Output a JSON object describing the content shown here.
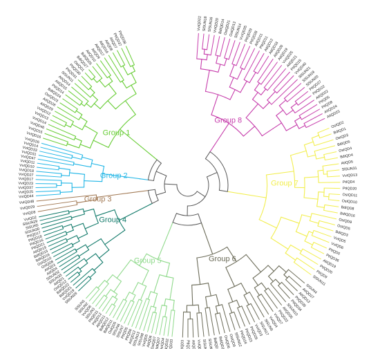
{
  "groups": [
    {
      "id": "g1",
      "label": "Group 1",
      "color": "#66cc33",
      "leaves": [
        "PtIQD38",
        "PtIQD37",
        "AtIQD7",
        "AtIQD8",
        "AtIQD16",
        "AtIQD17",
        "AtIQD9",
        "AtIQD10",
        "BdIQD26",
        "BdIQD27",
        "OsIQD1",
        "PtIQD30",
        "PtIQD31",
        "SlSUN11",
        "AtIQD14",
        "AtIQD15",
        "PtIQD14",
        "BdIQD24",
        "OsIQD23",
        "AtIQD28",
        "AtIQD29",
        "VvIQD12",
        "VvIQD13",
        "VvIQD14",
        "VvIQD46",
        "VvIQD15",
        "VvIQD16"
      ]
    },
    {
      "id": "g2",
      "label": "Group 2",
      "color": "#22b6e6",
      "leaves": [
        "VvIQD26",
        "VvIQD14",
        "VvIQD33",
        "VvIQD31",
        "VvIQD47",
        "VvIQD11",
        "VvIQD10",
        "VvIQD18",
        "VvIQD27",
        "VvIQD17",
        "VvIQD23",
        "VvIQD37",
        "VvIQD25",
        "VvIQD44"
      ]
    },
    {
      "id": "g3",
      "label": "Group 3",
      "color": "#a27a55",
      "leaves": [
        "VvIQD48",
        "VvIQD29",
        "VvIQD8"
      ]
    },
    {
      "id": "g4",
      "label": "Group 4",
      "color": "#117a6a",
      "leaves": [
        "VvIQD2",
        "SlSUN29",
        "SlSUN5",
        "SlSUN30",
        "PtIQD17",
        "PtIQD18",
        "PtIQD16",
        "PtIQD21",
        "AtIQD19",
        "BdIQD15",
        "BdIQD16",
        "OsIQD10",
        "OsIQD8",
        "AtIQD3",
        "AtIQD4",
        "SlSUN32",
        "SlSUN33",
        "AtIQD1",
        "OsIQD12",
        "BdIQD22",
        "BdIQD21",
        "VvIQD19",
        "SlSUN26"
      ]
    },
    {
      "id": "g5",
      "label": "Group 5",
      "color": "#8ed98a",
      "leaves": [
        "SlSUN1",
        "SlSUN2",
        "VvIQD6",
        "SlSUN3",
        "PtIQD11",
        "PtIQD12",
        "AtIQD11",
        "BdIQD12",
        "BdIQD11",
        "OsIQD5",
        "SlSUN6",
        "SlSUN7",
        "PtIQD5",
        "PtIQD6",
        "AtIQD12",
        "SlSUN13",
        "SlSUN8",
        "VvIQD5",
        "AtIQD6",
        "OsIQD7",
        "BdIQD7",
        "OsIQD4",
        "PtIQD32",
        "PtIQD33"
      ]
    },
    {
      "id": "g6",
      "label": "Group 6",
      "color": "#6b6b58",
      "leaves": [
        "PtIQD3",
        "PtIQD4",
        "AtIQD2",
        "VvIQD1",
        "SlSUN27",
        "SlSUN28",
        "BdIQD1",
        "BdIQD2",
        "OsIQD6",
        "OsIQD9",
        "SlSUN12",
        "PtIQD24",
        "PtIQD23",
        "PtIQD26",
        "VvIQD3",
        "SlSUN17",
        "SlSUN9",
        "VvIQD4",
        "VvIQD7",
        "PtIQD22",
        "AtIQD26",
        "SlSUN10",
        "PtIQD34",
        "PtIQD35",
        "AtIQD13",
        "AtIQD27",
        "SlSUN4"
      ]
    },
    {
      "id": "g7",
      "label": "Group 7",
      "color": "#f2ee4d",
      "leaves": [
        "SlSUN11",
        "PtIQD9",
        "PtIQD20",
        "AtIQD19",
        "PtIQD36",
        "PtIQD5",
        "VvIQD6",
        "VvIQD5",
        "BdIQD3",
        "OsIQD5",
        "OsIQD9",
        "BdIQD16",
        "BdIQD8",
        "OsIQD10",
        "OsIQD11",
        "PtIQD20",
        "PtIQD4",
        "VvIQD13",
        "SlSUN31",
        "AtIQD5",
        "BdIQD4",
        "OsIQD4",
        "BdIQD5",
        "OsIQD3",
        "BdIQD1",
        "OsIQD2"
      ]
    },
    {
      "id": "g8",
      "label": "Group 8",
      "color": "#c63cab",
      "leaves": [
        "AtIQD23",
        "AtIQD24",
        "PtIQD8",
        "PtIQD5",
        "AtIQD22",
        "PtIQD22",
        "PtIQD27",
        "SlSUN20",
        "SlSUN19",
        "SlSUN21",
        "VvIQD40",
        "PtIQD15",
        "AtIQD21",
        "VvIQD25",
        "AtIQD19",
        "AtIQD20",
        "AtIQD18",
        "AtIQD12",
        "PtIQD11",
        "AtIQD11",
        "PtIQD28",
        "PtIQD29",
        "VvIQD35",
        "SlSUN14",
        "OsIQD13",
        "OsIQD21",
        "BdIQD14",
        "VvIQD20",
        "SlSUN16",
        "SlSUN18",
        "VvIQD22"
      ]
    }
  ]
}
